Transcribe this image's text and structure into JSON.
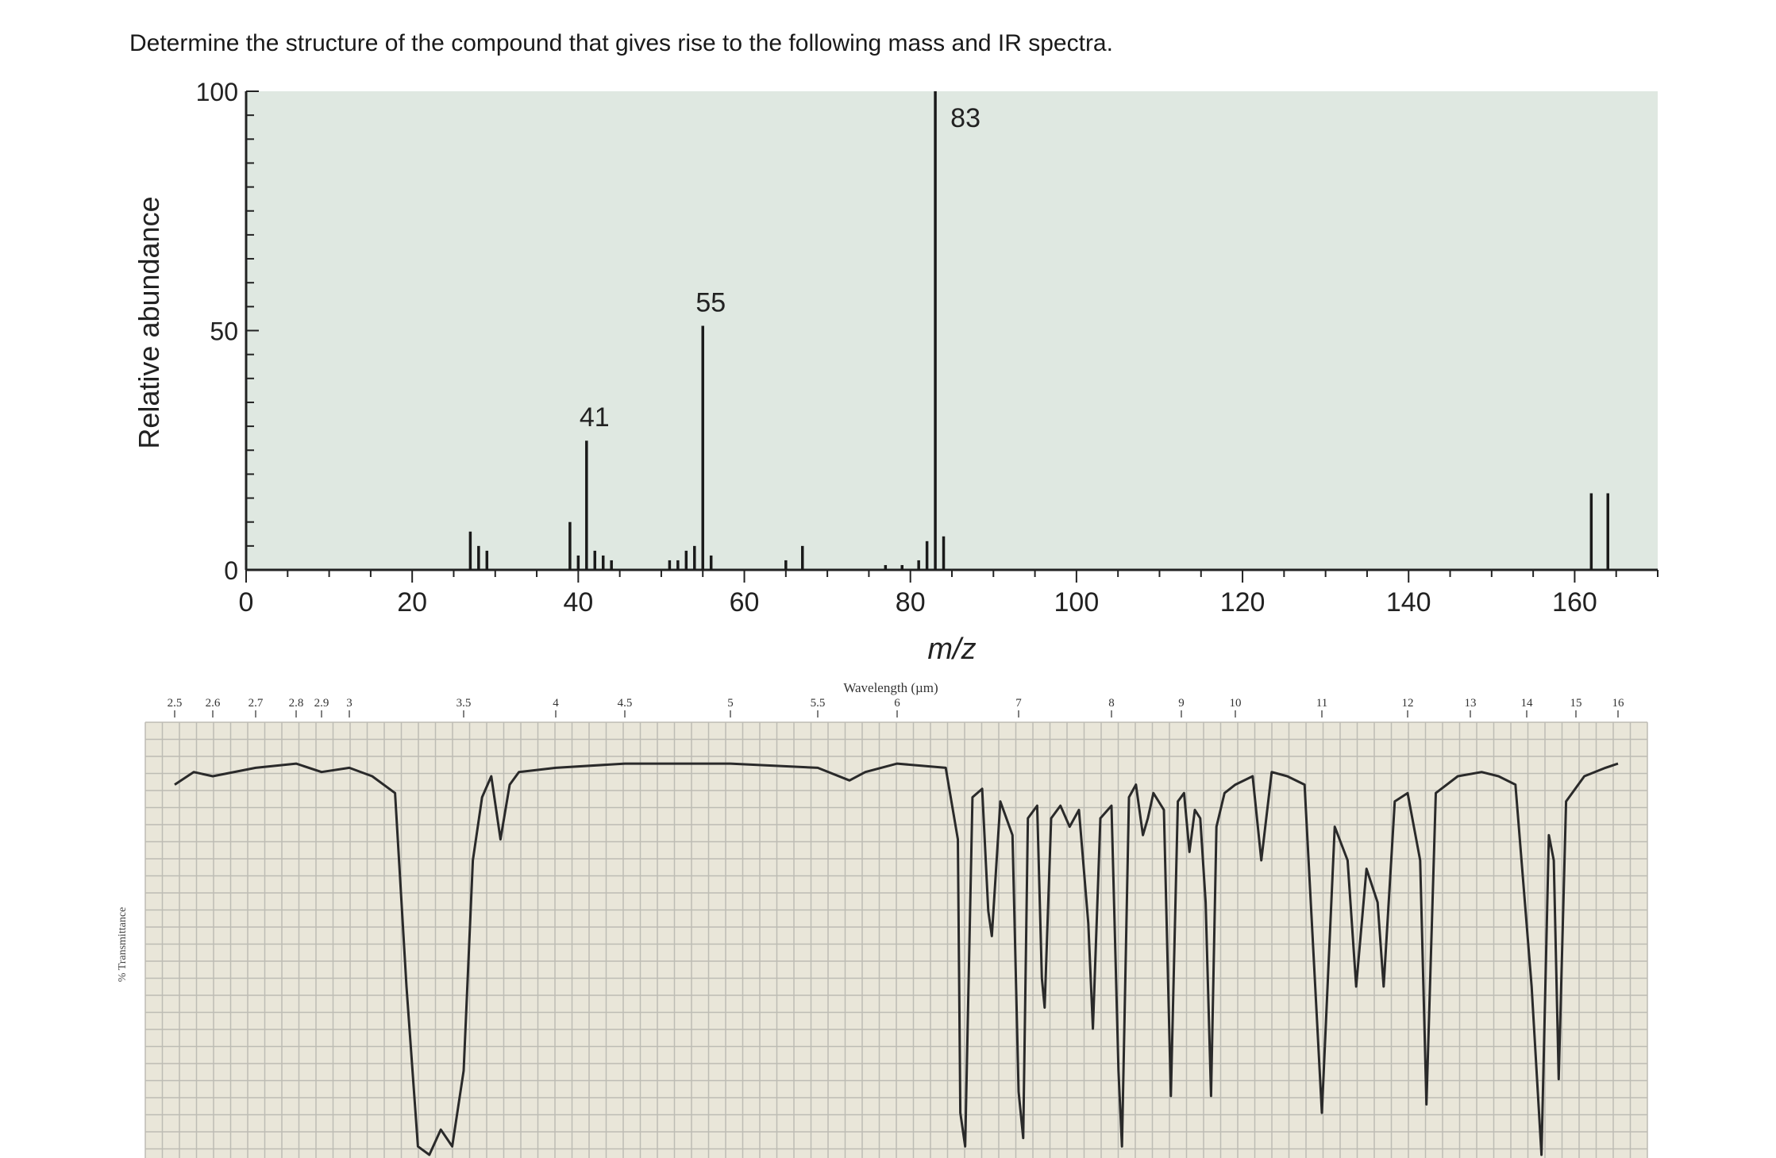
{
  "question": "Determine the structure of the compound that gives rise to the following mass and IR spectra.",
  "colors": {
    "ms_background": "#dfe8e1",
    "ms_bars": "#1a1a1a",
    "ir_background": "#e9e6d9",
    "ir_grid": "#bdbcb4",
    "ir_trace": "#2a2a2a"
  },
  "chart_data": [
    {
      "type": "bar",
      "title": "",
      "xlabel": "m/z",
      "ylabel": "Relative abundance",
      "xlim": [
        0,
        170
      ],
      "ylim": [
        0,
        100
      ],
      "x_ticks": [
        0,
        20,
        40,
        60,
        80,
        100,
        120,
        140,
        160
      ],
      "y_ticks": [
        0,
        50,
        100
      ],
      "grid": false,
      "peak_labels": [
        41,
        55,
        83
      ],
      "peaks": [
        {
          "mz": 27,
          "abundance": 8
        },
        {
          "mz": 28,
          "abundance": 5
        },
        {
          "mz": 29,
          "abundance": 4
        },
        {
          "mz": 39,
          "abundance": 10
        },
        {
          "mz": 40,
          "abundance": 3
        },
        {
          "mz": 41,
          "abundance": 27
        },
        {
          "mz": 42,
          "abundance": 4
        },
        {
          "mz": 43,
          "abundance": 3
        },
        {
          "mz": 44,
          "abundance": 2
        },
        {
          "mz": 51,
          "abundance": 2
        },
        {
          "mz": 52,
          "abundance": 2
        },
        {
          "mz": 53,
          "abundance": 4
        },
        {
          "mz": 54,
          "abundance": 5
        },
        {
          "mz": 55,
          "abundance": 51
        },
        {
          "mz": 56,
          "abundance": 3
        },
        {
          "mz": 65,
          "abundance": 2
        },
        {
          "mz": 67,
          "abundance": 5
        },
        {
          "mz": 77,
          "abundance": 1
        },
        {
          "mz": 79,
          "abundance": 1
        },
        {
          "mz": 81,
          "abundance": 2
        },
        {
          "mz": 82,
          "abundance": 6
        },
        {
          "mz": 83,
          "abundance": 100
        },
        {
          "mz": 84,
          "abundance": 7
        },
        {
          "mz": 162,
          "abundance": 16
        },
        {
          "mz": 164,
          "abundance": 16
        }
      ]
    },
    {
      "type": "line",
      "title": "",
      "xlabel": "Wavelength (µm)",
      "ylabel": "% Transmittance",
      "x_tick_labels": [
        "2.5",
        "2.6",
        "2.7",
        "2.8",
        "2.9",
        "3",
        "3.5",
        "4",
        "4.5",
        "5",
        "5.5",
        "6",
        "7",
        "8",
        "9",
        "10",
        "11",
        "12",
        "13",
        "14",
        "15",
        "16"
      ],
      "grid": true,
      "ylim": [
        0,
        100
      ],
      "series": [
        {
          "points": [
            [
              2.5,
              88
            ],
            [
              2.55,
              91
            ],
            [
              2.6,
              90
            ],
            [
              2.7,
              92
            ],
            [
              2.8,
              93
            ],
            [
              2.9,
              91
            ],
            [
              3.0,
              92
            ],
            [
              3.1,
              90
            ],
            [
              3.2,
              86
            ],
            [
              3.25,
              40
            ],
            [
              3.3,
              2
            ],
            [
              3.35,
              0
            ],
            [
              3.4,
              6
            ],
            [
              3.45,
              2
            ],
            [
              3.5,
              20
            ],
            [
              3.55,
              70
            ],
            [
              3.6,
              85
            ],
            [
              3.65,
              90
            ],
            [
              3.7,
              75
            ],
            [
              3.75,
              88
            ],
            [
              3.8,
              91
            ],
            [
              4.0,
              92
            ],
            [
              4.5,
              93
            ],
            [
              5.0,
              93
            ],
            [
              5.5,
              92
            ],
            [
              5.7,
              89
            ],
            [
              5.8,
              91
            ],
            [
              6.0,
              93
            ],
            [
              6.4,
              92
            ],
            [
              6.5,
              75
            ],
            [
              6.52,
              10
            ],
            [
              6.56,
              2
            ],
            [
              6.62,
              85
            ],
            [
              6.7,
              87
            ],
            [
              6.75,
              58
            ],
            [
              6.78,
              52
            ],
            [
              6.85,
              84
            ],
            [
              6.95,
              76
            ],
            [
              7.0,
              15
            ],
            [
              7.05,
              4
            ],
            [
              7.1,
              80
            ],
            [
              7.2,
              83
            ],
            [
              7.25,
              42
            ],
            [
              7.28,
              35
            ],
            [
              7.35,
              80
            ],
            [
              7.45,
              83
            ],
            [
              7.55,
              78
            ],
            [
              7.65,
              82
            ],
            [
              7.75,
              55
            ],
            [
              7.8,
              30
            ],
            [
              7.88,
              80
            ],
            [
              8.0,
              83
            ],
            [
              8.1,
              20
            ],
            [
              8.15,
              2
            ],
            [
              8.25,
              85
            ],
            [
              8.35,
              88
            ],
            [
              8.45,
              76
            ],
            [
              8.52,
              80
            ],
            [
              8.6,
              86
            ],
            [
              8.75,
              82
            ],
            [
              8.85,
              14
            ],
            [
              8.95,
              84
            ],
            [
              9.05,
              86
            ],
            [
              9.15,
              72
            ],
            [
              9.25,
              82
            ],
            [
              9.35,
              80
            ],
            [
              9.45,
              60
            ],
            [
              9.55,
              14
            ],
            [
              9.65,
              78
            ],
            [
              9.8,
              86
            ],
            [
              10.0,
              88
            ],
            [
              10.2,
              90
            ],
            [
              10.3,
              70
            ],
            [
              10.42,
              91
            ],
            [
              10.6,
              90
            ],
            [
              10.8,
              88
            ],
            [
              11.0,
              10
            ],
            [
              11.15,
              78
            ],
            [
              11.3,
              70
            ],
            [
              11.4,
              40
            ],
            [
              11.52,
              68
            ],
            [
              11.65,
              60
            ],
            [
              11.72,
              40
            ],
            [
              11.85,
              84
            ],
            [
              12.0,
              86
            ],
            [
              12.2,
              70
            ],
            [
              12.3,
              12
            ],
            [
              12.45,
              86
            ],
            [
              12.8,
              90
            ],
            [
              13.2,
              91
            ],
            [
              13.5,
              90
            ],
            [
              13.8,
              88
            ],
            [
              14.1,
              40
            ],
            [
              14.3,
              0
            ],
            [
              14.45,
              76
            ],
            [
              14.55,
              70
            ],
            [
              14.65,
              18
            ],
            [
              14.8,
              84
            ],
            [
              15.2,
              90
            ],
            [
              15.7,
              92
            ],
            [
              16.0,
              93
            ]
          ]
        }
      ]
    }
  ]
}
